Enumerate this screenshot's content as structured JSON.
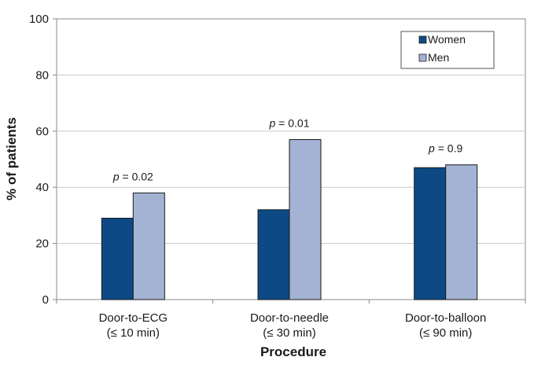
{
  "chart_data": {
    "type": "bar",
    "xlabel": "Procedure",
    "ylabel": "% of patients",
    "ylim": [
      0,
      100
    ],
    "yticks": [
      0,
      20,
      40,
      60,
      80,
      100
    ],
    "grid": true,
    "legend_position": "top-right",
    "categories": [
      {
        "line1": "Door-to-ECG",
        "line2": "(≤ 10 min)"
      },
      {
        "line1": "Door-to-needle",
        "line2": "(≤ 30 min)"
      },
      {
        "line1": "Door-to-balloon",
        "line2": "(≤ 90 min)"
      }
    ],
    "series": [
      {
        "name": "Women",
        "color": "#0d4a85",
        "values": [
          29,
          32,
          47
        ]
      },
      {
        "name": "Men",
        "color": "#a4b3d4",
        "values": [
          38,
          57,
          48
        ]
      }
    ],
    "annotations": [
      {
        "p_label": "p",
        "value": "= 0.02"
      },
      {
        "p_label": "p",
        "value": "= 0.01"
      },
      {
        "p_label": "p",
        "value": "= 0.9"
      }
    ]
  }
}
